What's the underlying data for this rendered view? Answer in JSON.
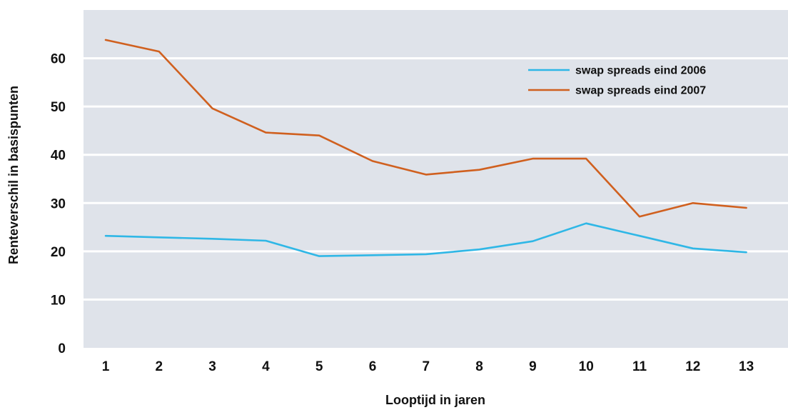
{
  "chart_data": {
    "type": "line",
    "title": "",
    "xlabel": "Looptijd in jaren",
    "ylabel": "Renteverschil in basispunten",
    "x": [
      1,
      2,
      3,
      4,
      5,
      6,
      7,
      8,
      9,
      10,
      11,
      12,
      13
    ],
    "ylim": [
      0,
      70
    ],
    "yticks": [
      0,
      10,
      20,
      30,
      40,
      50,
      60
    ],
    "grid": true,
    "legend_position": "top-right",
    "colors": {
      "plot_background": "#dfe3ea",
      "gridline": "#ffffff"
    },
    "series": [
      {
        "name": "swap spreads eind 2006",
        "color": "#2fb7e6",
        "values": [
          23.2,
          22.9,
          22.6,
          22.2,
          19.0,
          19.2,
          19.4,
          20.4,
          22.1,
          25.8,
          23.2,
          20.6,
          19.8
        ]
      },
      {
        "name": "swap spreads eind 2007",
        "color": "#d0601f",
        "values": [
          63.8,
          61.4,
          49.6,
          44.6,
          44.0,
          38.7,
          35.9,
          36.9,
          39.2,
          39.2,
          27.2,
          30.0,
          29.0
        ]
      }
    ]
  }
}
